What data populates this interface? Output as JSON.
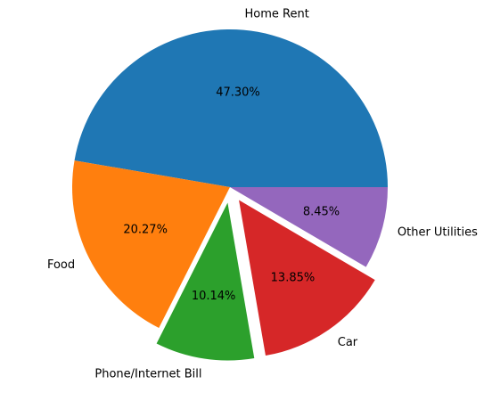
{
  "chart_data": {
    "type": "pie",
    "title": "",
    "categories": [
      "Home Rent",
      "Food",
      "Phone/Internet Bill",
      "Car",
      "Other Utilities"
    ],
    "values": [
      47.3,
      20.27,
      10.14,
      13.85,
      8.45
    ],
    "percent_labels": [
      "47.30%",
      "20.27%",
      "10.14%",
      "13.85%",
      "8.45%"
    ],
    "exploded": [
      false,
      false,
      true,
      true,
      false
    ],
    "colors": [
      "#1f77b4",
      "#ff7f0e",
      "#2ca02c",
      "#d62728",
      "#9467bd"
    ],
    "start_angle_deg": 0,
    "direction": "counterclockwise",
    "legend": "none"
  }
}
